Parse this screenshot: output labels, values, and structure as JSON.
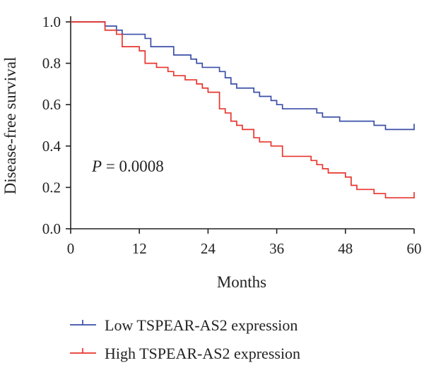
{
  "chart_data": {
    "type": "line",
    "subtype": "kaplan-meier step curve",
    "xlabel": "Months",
    "ylabel": "Disease-free survival",
    "xlim": [
      0,
      60
    ],
    "ylim": [
      0,
      1.0
    ],
    "xticks": [
      0,
      12,
      24,
      36,
      48,
      60
    ],
    "yticks": [
      "0.0",
      "0.2",
      "0.4",
      "0.6",
      "0.8",
      "1.0"
    ],
    "grid": false,
    "legend_position": "bottom",
    "annotation": {
      "italic": "P",
      "text": " = 0.0008"
    },
    "series": [
      {
        "name": "Low TSPEAR-AS2 expression",
        "color": "#3a4fa8",
        "points": [
          [
            0,
            1.0
          ],
          [
            6,
            1.0
          ],
          [
            6,
            0.98
          ],
          [
            8,
            0.98
          ],
          [
            8,
            0.96
          ],
          [
            9,
            0.96
          ],
          [
            9,
            0.94
          ],
          [
            13,
            0.94
          ],
          [
            13,
            0.92
          ],
          [
            14,
            0.92
          ],
          [
            14,
            0.88
          ],
          [
            18,
            0.88
          ],
          [
            18,
            0.84
          ],
          [
            21,
            0.84
          ],
          [
            21,
            0.82
          ],
          [
            22,
            0.82
          ],
          [
            22,
            0.8
          ],
          [
            23,
            0.8
          ],
          [
            23,
            0.78
          ],
          [
            26,
            0.78
          ],
          [
            26,
            0.76
          ],
          [
            27,
            0.76
          ],
          [
            27,
            0.73
          ],
          [
            28,
            0.73
          ],
          [
            28,
            0.7
          ],
          [
            29,
            0.7
          ],
          [
            29,
            0.68
          ],
          [
            32,
            0.68
          ],
          [
            32,
            0.66
          ],
          [
            33,
            0.66
          ],
          [
            33,
            0.64
          ],
          [
            35,
            0.64
          ],
          [
            35,
            0.62
          ],
          [
            36,
            0.62
          ],
          [
            36,
            0.6
          ],
          [
            37,
            0.6
          ],
          [
            37,
            0.58
          ],
          [
            43,
            0.58
          ],
          [
            43,
            0.56
          ],
          [
            44,
            0.56
          ],
          [
            44,
            0.54
          ],
          [
            47,
            0.54
          ],
          [
            47,
            0.52
          ],
          [
            53,
            0.52
          ],
          [
            53,
            0.5
          ],
          [
            55,
            0.5
          ],
          [
            55,
            0.48
          ],
          [
            60,
            0.48
          ]
        ],
        "censor": [
          [
            60,
            0.48
          ]
        ]
      },
      {
        "name": "High TSPEAR-AS2 expression",
        "color": "#e8352d",
        "points": [
          [
            0,
            1.0
          ],
          [
            6,
            1.0
          ],
          [
            6,
            0.96
          ],
          [
            8,
            0.96
          ],
          [
            8,
            0.94
          ],
          [
            9,
            0.94
          ],
          [
            9,
            0.88
          ],
          [
            12,
            0.88
          ],
          [
            12,
            0.86
          ],
          [
            13,
            0.86
          ],
          [
            13,
            0.8
          ],
          [
            15,
            0.8
          ],
          [
            15,
            0.78
          ],
          [
            17,
            0.78
          ],
          [
            17,
            0.76
          ],
          [
            18,
            0.76
          ],
          [
            18,
            0.74
          ],
          [
            20,
            0.74
          ],
          [
            20,
            0.72
          ],
          [
            22,
            0.72
          ],
          [
            22,
            0.7
          ],
          [
            23,
            0.7
          ],
          [
            23,
            0.68
          ],
          [
            24,
            0.68
          ],
          [
            24,
            0.66
          ],
          [
            26,
            0.66
          ],
          [
            26,
            0.58
          ],
          [
            27,
            0.58
          ],
          [
            27,
            0.56
          ],
          [
            28,
            0.56
          ],
          [
            28,
            0.52
          ],
          [
            29,
            0.52
          ],
          [
            29,
            0.5
          ],
          [
            30,
            0.5
          ],
          [
            30,
            0.48
          ],
          [
            32,
            0.48
          ],
          [
            32,
            0.44
          ],
          [
            33,
            0.44
          ],
          [
            33,
            0.42
          ],
          [
            35,
            0.42
          ],
          [
            35,
            0.4
          ],
          [
            37,
            0.4
          ],
          [
            37,
            0.35
          ],
          [
            42,
            0.35
          ],
          [
            42,
            0.33
          ],
          [
            43,
            0.33
          ],
          [
            43,
            0.31
          ],
          [
            44,
            0.31
          ],
          [
            44,
            0.29
          ],
          [
            45,
            0.29
          ],
          [
            45,
            0.27
          ],
          [
            48,
            0.27
          ],
          [
            48,
            0.25
          ],
          [
            49,
            0.25
          ],
          [
            49,
            0.21
          ],
          [
            50,
            0.21
          ],
          [
            50,
            0.19
          ],
          [
            53,
            0.19
          ],
          [
            53,
            0.17
          ],
          [
            55,
            0.17
          ],
          [
            55,
            0.15
          ],
          [
            60,
            0.15
          ]
        ],
        "censor": [
          [
            60,
            0.15
          ]
        ]
      }
    ]
  }
}
